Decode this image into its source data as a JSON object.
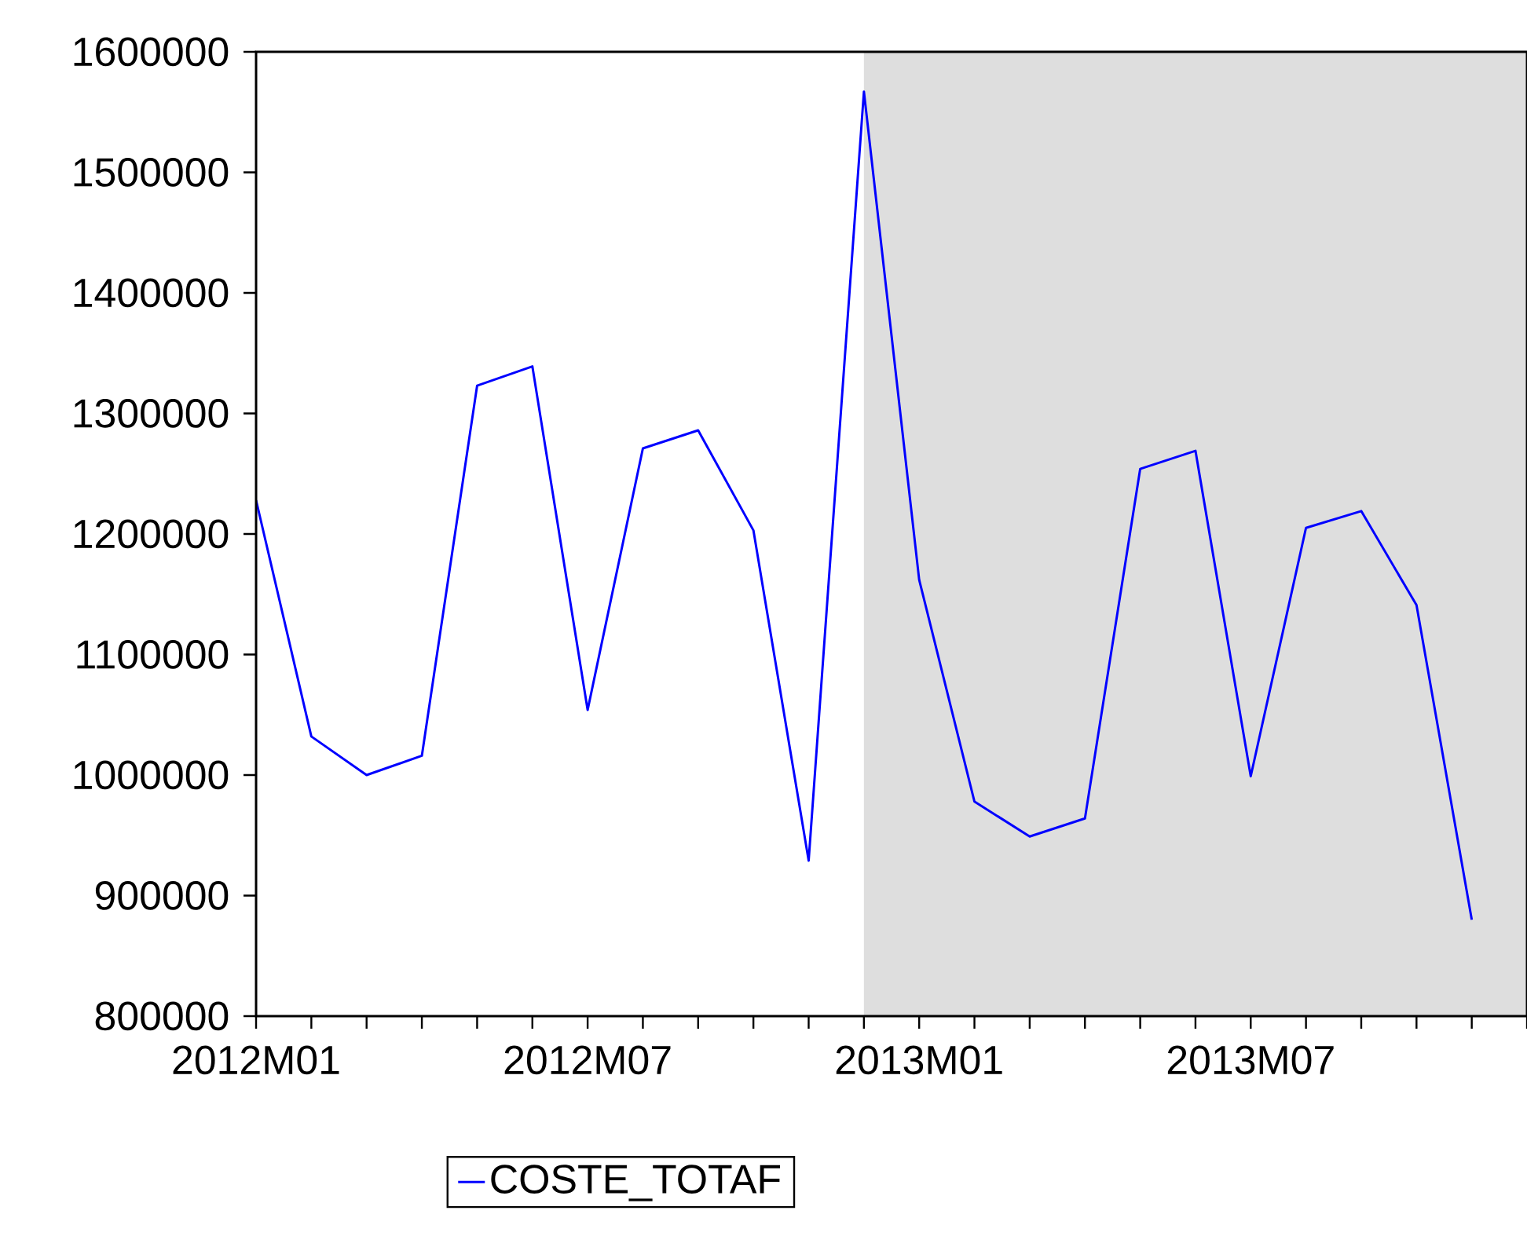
{
  "chart_data": {
    "type": "line",
    "x": [
      "2012-01",
      "2012-02",
      "2012-03",
      "2012-04",
      "2012-05",
      "2012-06",
      "2012-07",
      "2012-08",
      "2012-09",
      "2012-10",
      "2012-11",
      "2012-12",
      "2013-01",
      "2013-02",
      "2013-03",
      "2013-04",
      "2013-05",
      "2013-06",
      "2013-07",
      "2013-08",
      "2013-09",
      "2013-10",
      "2013-11"
    ],
    "series": [
      {
        "name": "COSTE_TOTAF",
        "color": "#0000ff",
        "values": [
          1228000,
          1032000,
          1000000,
          1016000,
          1323000,
          1339000,
          1054000,
          1271000,
          1286000,
          1203000,
          929000,
          1567000,
          1162000,
          978000,
          949000,
          964000,
          1254000,
          1269000,
          999000,
          1205000,
          1219000,
          1141000,
          880000
        ]
      }
    ],
    "xlim": [
      "2012-01",
      "2013-12"
    ],
    "xticks": [
      {
        "value": "2012-01",
        "label": "2012M01"
      },
      {
        "value": "2012-02",
        "label": null
      },
      {
        "value": "2012-03",
        "label": null
      },
      {
        "value": "2012-04",
        "label": null
      },
      {
        "value": "2012-05",
        "label": null
      },
      {
        "value": "2012-06",
        "label": null
      },
      {
        "value": "2012-07",
        "label": "2012M07"
      },
      {
        "value": "2012-08",
        "label": null
      },
      {
        "value": "2012-09",
        "label": null
      },
      {
        "value": "2012-10",
        "label": null
      },
      {
        "value": "2012-11",
        "label": null
      },
      {
        "value": "2012-12",
        "label": null
      },
      {
        "value": "2013-01",
        "label": "2013M01"
      },
      {
        "value": "2013-02",
        "label": null
      },
      {
        "value": "2013-03",
        "label": null
      },
      {
        "value": "2013-04",
        "label": null
      },
      {
        "value": "2013-05",
        "label": null
      },
      {
        "value": "2013-06",
        "label": null
      },
      {
        "value": "2013-07",
        "label": "2013M07"
      },
      {
        "value": "2013-08",
        "label": null
      },
      {
        "value": "2013-09",
        "label": null
      },
      {
        "value": "2013-10",
        "label": null
      },
      {
        "value": "2013-11",
        "label": null
      },
      {
        "value": "2013-12",
        "label": null
      }
    ],
    "ylim": [
      800000,
      1600000
    ],
    "yticks": [
      800000,
      900000,
      1000000,
      1100000,
      1200000,
      1300000,
      1400000,
      1500000,
      1600000
    ],
    "bands": [
      {
        "axis": "x",
        "from": "2012-12",
        "to": "2013-12",
        "color": "#dedede"
      }
    ],
    "legend": "bottom",
    "line_style": "solid"
  }
}
